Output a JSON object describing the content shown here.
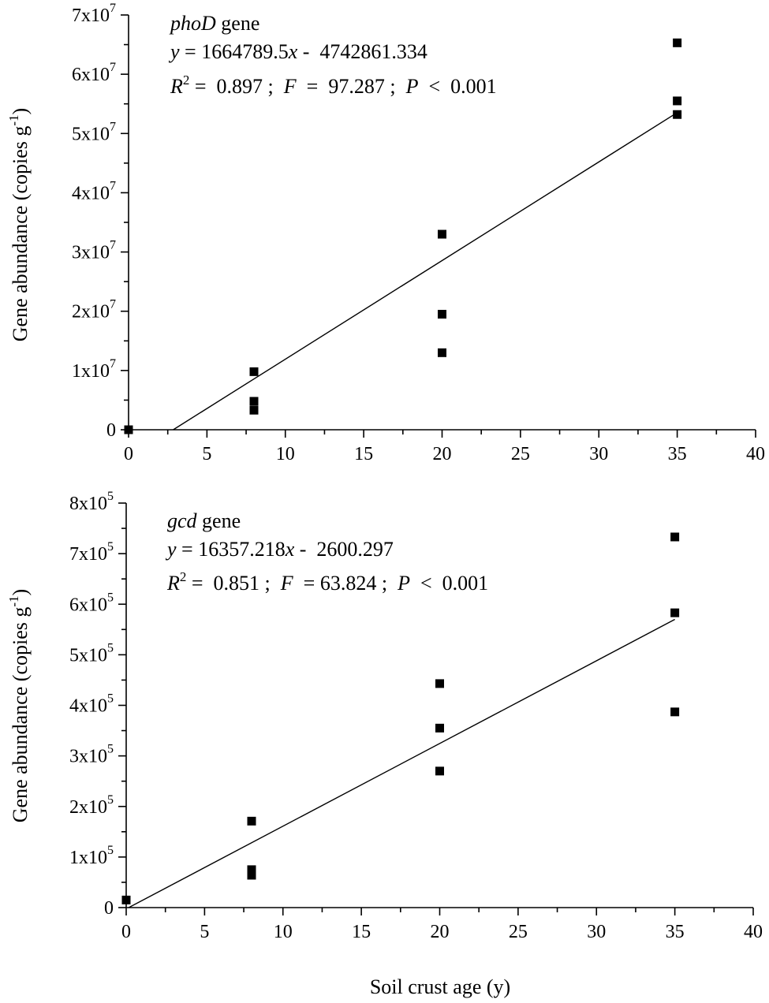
{
  "figure": {
    "xlabel": "Soil crust age (y)",
    "ylabel_main": "Gene abundance (copies g",
    "ylabel_sup": "-1",
    "ylabel_close": ")"
  },
  "chart_data": [
    {
      "type": "scatter",
      "gene": "phoD",
      "gene_suffix": " gene",
      "equation": {
        "y_var": "y",
        "middle": " = 1664789.5",
        "x_var": "x",
        "end": " -  4742861.334"
      },
      "stats": {
        "r_label": "R",
        "r_sup": "2",
        "r_value": " =  0.897 ;  ",
        "f_label": "F",
        "f_value": "  =  97.287 ;  ",
        "p_label": "P",
        "p_value": "  <  0.001"
      },
      "x": [
        0,
        8,
        8,
        8,
        20,
        20,
        20,
        35,
        35,
        35
      ],
      "y": [
        0,
        9800000,
        4800000,
        3300000,
        33000000,
        19500000,
        13000000,
        65300000,
        55500000,
        53200000
      ],
      "fit": {
        "slope": 1664789.5,
        "intercept": -4742861.334
      },
      "xlim": [
        0,
        40
      ],
      "ylim": [
        0,
        70000000
      ],
      "x_ticks": [
        {
          "value": 0,
          "label": "0"
        },
        {
          "value": 5,
          "label": "5"
        },
        {
          "value": 10,
          "label": "10"
        },
        {
          "value": 15,
          "label": "15"
        },
        {
          "value": 20,
          "label": "20"
        },
        {
          "value": 25,
          "label": "25"
        },
        {
          "value": 30,
          "label": "30"
        },
        {
          "value": 35,
          "label": "35"
        },
        {
          "value": 40,
          "label": "40"
        }
      ],
      "x_minor_ticks": [
        2.5,
        7.5,
        12.5,
        17.5,
        22.5,
        27.5,
        32.5,
        37.5
      ],
      "y_ticks": [
        {
          "value": 0,
          "label": "0",
          "exp": ""
        },
        {
          "value": 10000000,
          "label": "1x10",
          "exp": "7"
        },
        {
          "value": 20000000,
          "label": "2x10",
          "exp": "7"
        },
        {
          "value": 30000000,
          "label": "3x10",
          "exp": "7"
        },
        {
          "value": 40000000,
          "label": "4x10",
          "exp": "7"
        },
        {
          "value": 50000000,
          "label": "5x10",
          "exp": "7"
        },
        {
          "value": 60000000,
          "label": "6x10",
          "exp": "7"
        },
        {
          "value": 70000000,
          "label": "7x10",
          "exp": "7"
        }
      ],
      "y_minor_ticks": [
        5000000,
        15000000,
        25000000,
        35000000,
        45000000,
        55000000,
        65000000
      ]
    },
    {
      "type": "scatter",
      "gene": "gcd",
      "gene_suffix": " gene",
      "equation": {
        "y_var": "y",
        "middle": " = 16357.218",
        "x_var": "x",
        "end": " -  2600.297"
      },
      "stats": {
        "r_label": "R",
        "r_sup": "2",
        "r_value": " =  0.851 ;  ",
        "f_label": "F",
        "f_value": "  = 63.824 ;  ",
        "p_label": "P",
        "p_value": "  <  0.001"
      },
      "x": [
        0,
        8,
        8,
        8,
        20,
        20,
        20,
        35,
        35,
        35
      ],
      "y": [
        15000,
        171000,
        75000,
        64000,
        443000,
        355000,
        270000,
        733000,
        583000,
        387000
      ],
      "fit": {
        "slope": 16357.218,
        "intercept": -2600.297
      },
      "xlim": [
        0,
        40
      ],
      "ylim": [
        0,
        800000
      ],
      "x_ticks": [
        {
          "value": 0,
          "label": "0"
        },
        {
          "value": 5,
          "label": "5"
        },
        {
          "value": 10,
          "label": "10"
        },
        {
          "value": 15,
          "label": "15"
        },
        {
          "value": 20,
          "label": "20"
        },
        {
          "value": 25,
          "label": "25"
        },
        {
          "value": 30,
          "label": "30"
        },
        {
          "value": 35,
          "label": "35"
        },
        {
          "value": 40,
          "label": "40"
        }
      ],
      "x_minor_ticks": [
        2.5,
        7.5,
        12.5,
        17.5,
        22.5,
        27.5,
        32.5,
        37.5
      ],
      "y_ticks": [
        {
          "value": 0,
          "label": "0",
          "exp": ""
        },
        {
          "value": 100000,
          "label": "1x10",
          "exp": "5"
        },
        {
          "value": 200000,
          "label": "2x10",
          "exp": "5"
        },
        {
          "value": 300000,
          "label": "3x10",
          "exp": "5"
        },
        {
          "value": 400000,
          "label": "4x10",
          "exp": "5"
        },
        {
          "value": 500000,
          "label": "5x10",
          "exp": "5"
        },
        {
          "value": 600000,
          "label": "6x10",
          "exp": "5"
        },
        {
          "value": 700000,
          "label": "7x10",
          "exp": "5"
        },
        {
          "value": 800000,
          "label": "8x10",
          "exp": "5"
        }
      ],
      "y_minor_ticks": [
        50000,
        150000,
        250000,
        350000,
        450000,
        550000,
        650000,
        750000
      ]
    }
  ]
}
